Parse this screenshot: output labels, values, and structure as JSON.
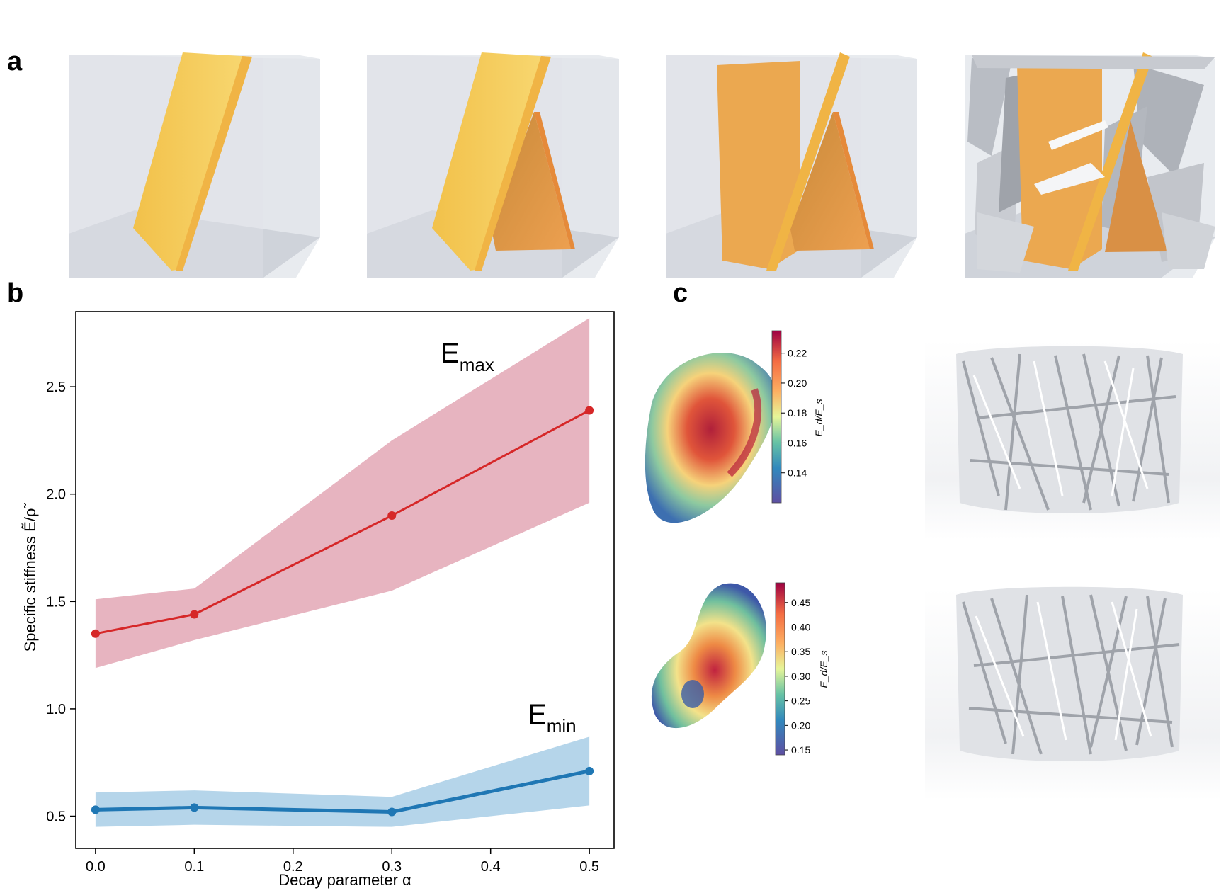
{
  "panels": {
    "a": "a",
    "b": "b",
    "c": "c"
  },
  "colors": {
    "emax_line": "#d62728",
    "emax_band": "#e7b4c0",
    "emin_line": "#1f77b4",
    "emin_band": "#b5d5ea",
    "slab_yellow": "#f5cd5a",
    "slab_orange": "#eba850",
    "cube_gray": "#d7dbe2"
  },
  "chart_data": {
    "type": "line",
    "xlabel": "Decay parameter α",
    "ylabel": "Specific stiffness Ẽ/ρ̃",
    "x": [
      0.0,
      0.1,
      0.3,
      0.5
    ],
    "xlim": [
      -0.02,
      0.525
    ],
    "ylim": [
      0.35,
      2.85
    ],
    "xticks": [
      "0.0",
      "0.1",
      "0.2",
      "0.3",
      "0.4",
      "0.5"
    ],
    "yticks": [
      "0.5",
      "1.0",
      "1.5",
      "2.0",
      "2.5"
    ],
    "series": [
      {
        "name": "E_max",
        "label_main": "E",
        "label_sub": "max",
        "values": [
          1.35,
          1.44,
          1.9,
          2.39
        ],
        "lower": [
          1.19,
          1.32,
          1.55,
          1.96
        ],
        "upper": [
          1.51,
          1.56,
          2.25,
          2.82
        ]
      },
      {
        "name": "E_min",
        "label_main": "E",
        "label_sub": "min",
        "values": [
          0.53,
          0.54,
          0.52,
          0.71
        ],
        "lower": [
          0.45,
          0.46,
          0.45,
          0.55
        ],
        "upper": [
          0.61,
          0.62,
          0.59,
          0.87
        ]
      }
    ],
    "grid": false
  },
  "colorbars": [
    {
      "label": "E_d/E_s",
      "ticks": [
        "0.22",
        "0.20",
        "0.18",
        "0.16",
        "0.14"
      ]
    },
    {
      "label": "E_d/E_s",
      "ticks": [
        "0.45",
        "0.40",
        "0.35",
        "0.30",
        "0.25",
        "0.20",
        "0.15"
      ]
    }
  ]
}
